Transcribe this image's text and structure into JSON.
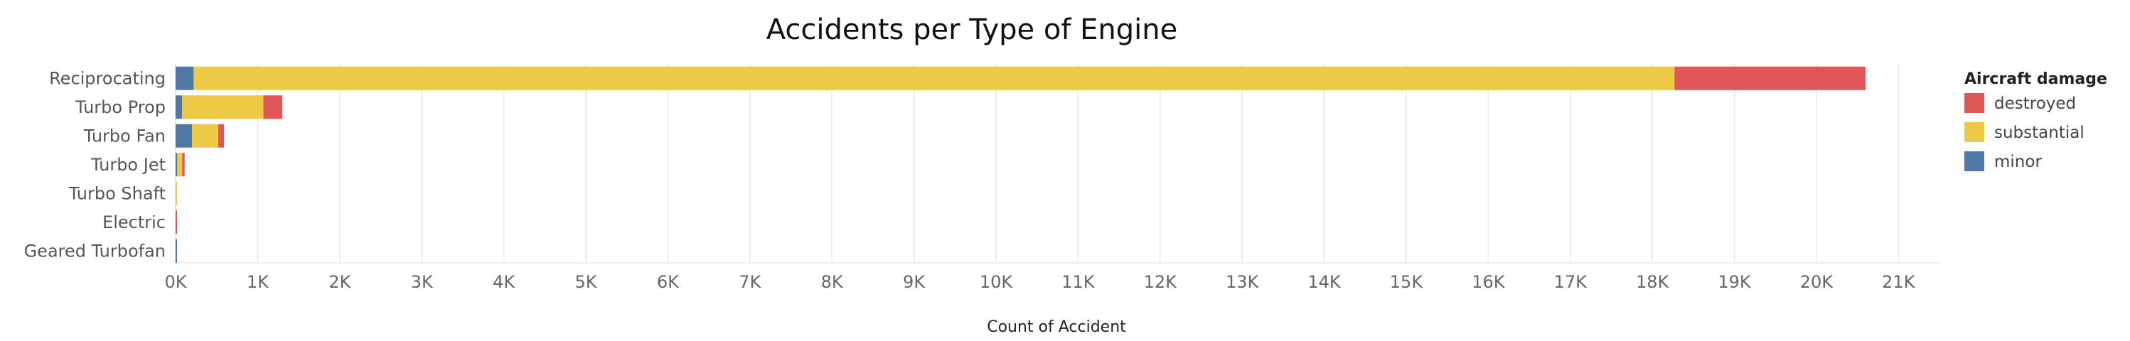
{
  "chart_data": {
    "type": "bar",
    "orientation": "horizontal",
    "stacked": true,
    "title": "Accidents per Type of Engine",
    "xlabel": "Count of Accident",
    "ylabel": "",
    "xlim": [
      0,
      21500
    ],
    "x_ticks": [
      0,
      1000,
      2000,
      3000,
      4000,
      5000,
      6000,
      7000,
      8000,
      9000,
      10000,
      11000,
      12000,
      13000,
      14000,
      15000,
      16000,
      17000,
      18000,
      19000,
      20000,
      21000
    ],
    "x_tick_labels": [
      "0K",
      "1K",
      "2K",
      "3K",
      "4K",
      "5K",
      "6K",
      "7K",
      "8K",
      "9K",
      "10K",
      "11K",
      "12K",
      "13K",
      "14K",
      "15K",
      "16K",
      "17K",
      "18K",
      "19K",
      "20K",
      "21K"
    ],
    "grid": true,
    "legend_position": "right",
    "legend_title": "Aircraft damage",
    "categories": [
      "Reciprocating",
      "Turbo Prop",
      "Turbo Fan",
      "Turbo Jet",
      "Turbo Shaft",
      "Electric",
      "Geared Turbofan"
    ],
    "stack_order": [
      "minor",
      "substantial",
      "destroyed"
    ],
    "series": [
      {
        "name": "destroyed",
        "color": "#e15759",
        "values": [
          2330,
          230,
          70,
          30,
          0,
          8,
          0
        ]
      },
      {
        "name": "substantial",
        "color": "#edc948",
        "values": [
          18050,
          990,
          320,
          60,
          12,
          0,
          0
        ]
      },
      {
        "name": "minor",
        "color": "#4e79a7",
        "values": [
          220,
          80,
          200,
          20,
          0,
          0,
          8
        ]
      }
    ]
  }
}
